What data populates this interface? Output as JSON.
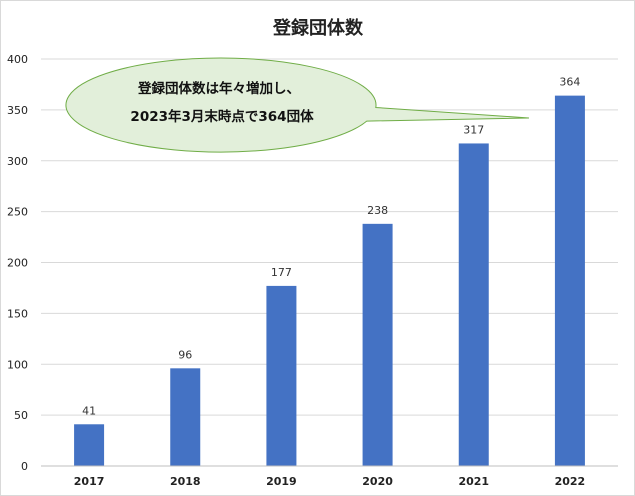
{
  "chart_data": {
    "type": "bar",
    "title": "登録団体数",
    "categories": [
      "2017",
      "2018",
      "2019",
      "2020",
      "2021",
      "2022"
    ],
    "values": [
      41,
      96,
      177,
      238,
      317,
      364
    ],
    "data_labels": [
      "41",
      "96",
      "177",
      "238",
      "317",
      "364"
    ],
    "xlabel": "",
    "ylabel": "",
    "ylim": [
      0,
      400
    ],
    "yticks": [
      0,
      50,
      100,
      150,
      200,
      250,
      300,
      350,
      400
    ],
    "grid": true,
    "legend": "none",
    "bar_color": "#4472c4",
    "grid_color": "#d9d9d9",
    "annotation": {
      "lines": [
        "登録団体数は年々増加し、",
        "2023年3月末時点で364団体"
      ],
      "fill": "#e2efda",
      "stroke": "#70ad47"
    }
  }
}
